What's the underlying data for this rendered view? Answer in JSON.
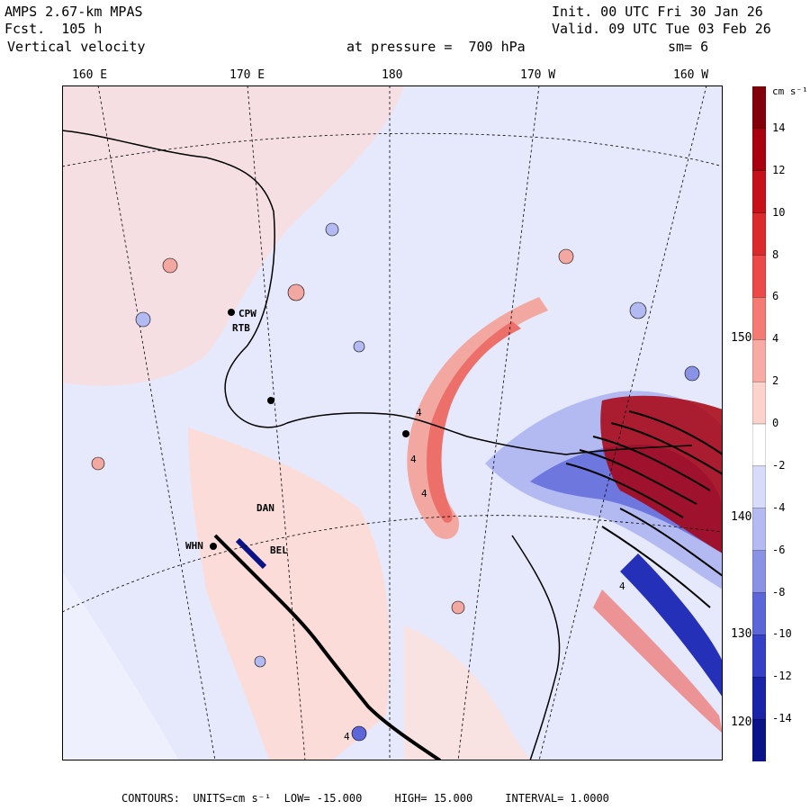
{
  "header": {
    "model": "AMPS 2.67-km MPAS",
    "forecast": "Fcst.  105 h",
    "field": "Vertical velocity",
    "init": "Init. 00 UTC Fri 30 Jan 26",
    "valid": "Valid. 09 UTC Tue 03 Feb 26",
    "pressure": "at pressure =  700 hPa",
    "smooth": "sm= 6"
  },
  "lon_labels": [
    "160 E",
    "170 E",
    "180",
    "170 W",
    "160 W"
  ],
  "lat_labels": [
    "150 W",
    "140 W",
    "130 W",
    "120 W"
  ],
  "colorbar": {
    "unit": "cm s⁻¹",
    "ticks": [
      "14",
      "12",
      "10",
      "8",
      "6",
      "4",
      "2",
      "0",
      "-2",
      "-4",
      "-6",
      "-8",
      "-10",
      "-12",
      "-14"
    ],
    "colors": [
      "#82000a",
      "#a8000e",
      "#c6101a",
      "#dc2a2c",
      "#ec4a48",
      "#f47a74",
      "#f8aaa4",
      "#fcd2cc",
      "#ffffff",
      "#d8dcfa",
      "#b4baf2",
      "#8a92e6",
      "#5c66d8",
      "#3440c6",
      "#1a24a8",
      "#0a1488"
    ]
  },
  "stations": [
    "CPW",
    "RTB",
    "DAN",
    "WHN",
    "BEL"
  ],
  "max_marker": "4",
  "footer": {
    "label": "CONTOURS:",
    "units": "UNITS=cm s⁻¹",
    "low": "LOW= -15.000",
    "high": "HIGH= 15.000",
    "interval": "INTERVAL= 1.0000"
  }
}
